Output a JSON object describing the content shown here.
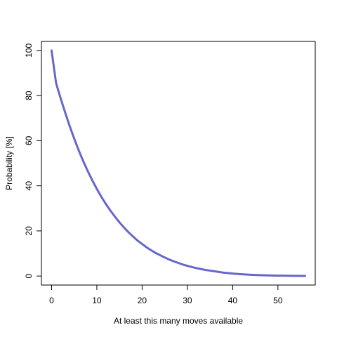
{
  "chart_data": {
    "type": "line",
    "title": "",
    "xlabel": "At least this many moves available",
    "ylabel": "Probability [%]",
    "xlim": [
      0,
      56
    ],
    "ylim": [
      0,
      100
    ],
    "x_ticks": [
      0,
      10,
      20,
      30,
      40,
      50
    ],
    "y_ticks": [
      0,
      20,
      40,
      60,
      80,
      100
    ],
    "grid": false,
    "legend": "none",
    "line_color": "#6666cc",
    "series": [
      {
        "x": [
          0,
          1,
          2,
          3,
          4,
          5,
          6,
          7,
          8,
          9,
          10,
          11,
          12,
          13,
          14,
          15,
          16,
          17,
          18,
          19,
          20,
          21,
          22,
          23,
          24,
          25,
          26,
          27,
          28,
          29,
          30,
          31,
          32,
          33,
          34,
          35,
          36,
          37,
          38,
          39,
          40,
          41,
          42,
          43,
          44,
          45,
          46,
          47,
          48,
          49,
          50,
          51,
          52,
          53,
          54,
          55,
          56
        ],
        "values": [
          100,
          85.5,
          78.8,
          72.5,
          66.5,
          60.9,
          55.7,
          50.9,
          46.5,
          42.4,
          38.6,
          35.1,
          31.9,
          29.0,
          26.3,
          23.8,
          21.5,
          19.4,
          17.5,
          15.7,
          14.2,
          12.7,
          11.4,
          10.2,
          9.2,
          8.2,
          7.3,
          6.5,
          5.8,
          5.1,
          4.5,
          4.0,
          3.5,
          3.1,
          2.7,
          2.4,
          2.1,
          1.8,
          1.5,
          1.3,
          1.1,
          0.95,
          0.8,
          0.68,
          0.57,
          0.48,
          0.4,
          0.33,
          0.27,
          0.22,
          0.18,
          0.15,
          0.12,
          0.09,
          0.07,
          0.05,
          0.04
        ]
      }
    ]
  }
}
